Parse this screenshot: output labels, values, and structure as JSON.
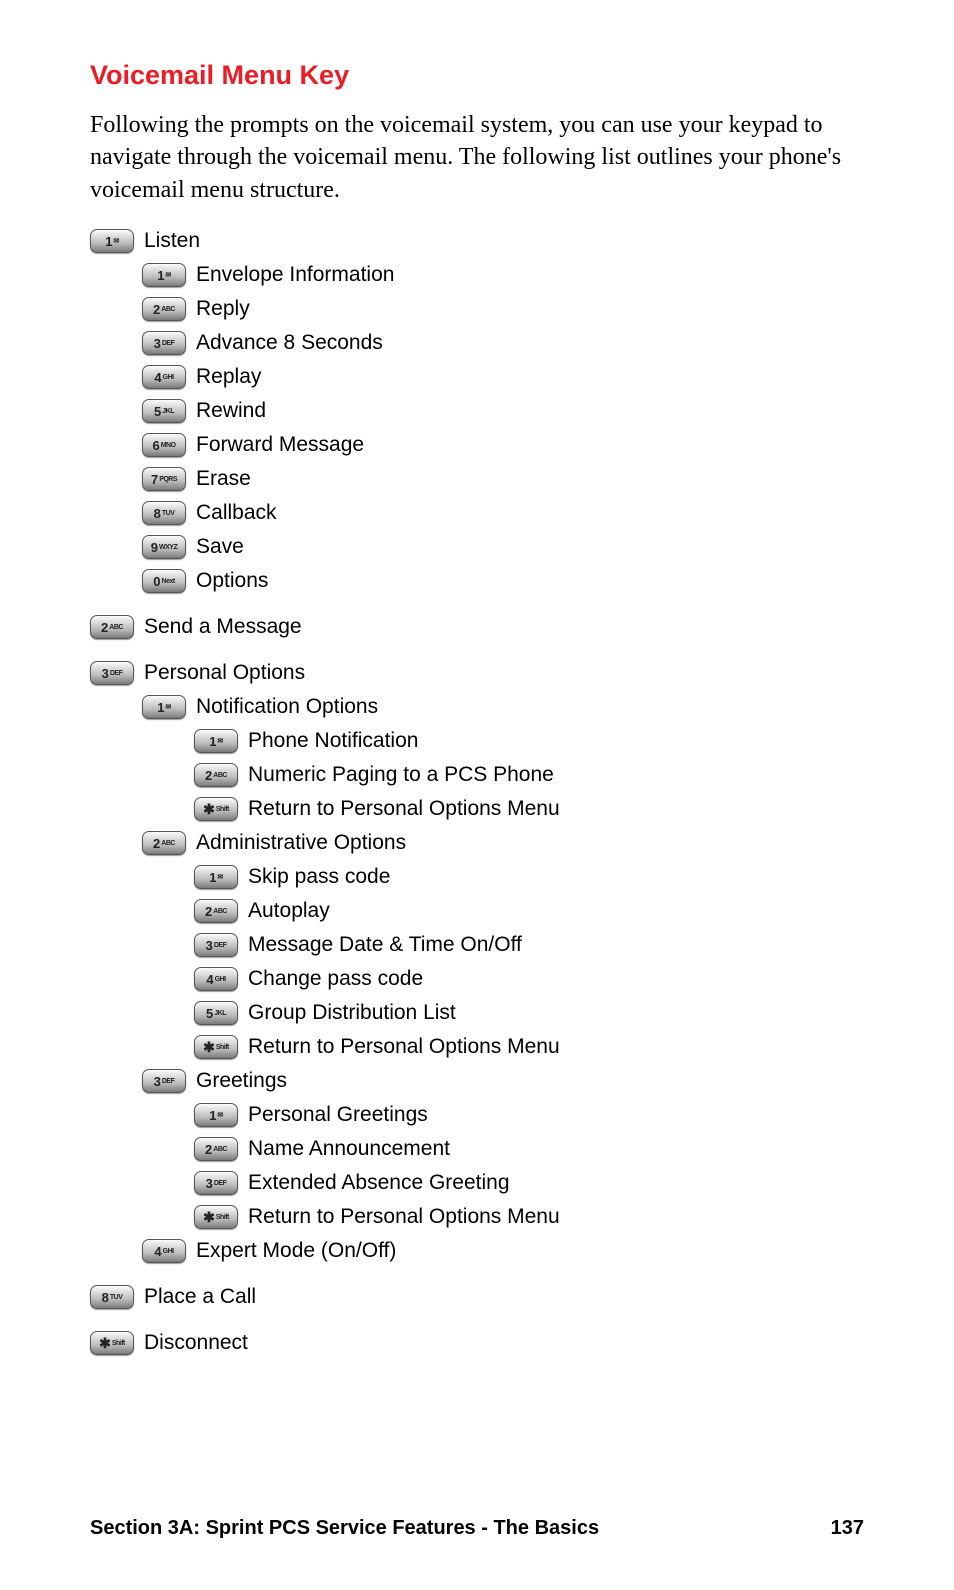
{
  "title": "Voicemail Menu Key",
  "intro": "Following the prompts on the voicemail system, you can use your keypad to navigate through the voicemail menu. The following list outlines your phone's voicemail menu structure.",
  "keys": {
    "1": {
      "big": "1",
      "sm": "✉"
    },
    "2": {
      "big": "2",
      "sm": "ABC"
    },
    "3": {
      "big": "3",
      "sm": "DEF"
    },
    "4": {
      "big": "4",
      "sm": "GHI"
    },
    "5": {
      "big": "5",
      "sm": "JKL"
    },
    "6": {
      "big": "6",
      "sm": "MNO"
    },
    "7": {
      "big": "7",
      "sm": "PQRS"
    },
    "8": {
      "big": "8",
      "sm": "TUV"
    },
    "9": {
      "big": "9",
      "sm": "WXYZ"
    },
    "0": {
      "big": "0",
      "sm": "Next"
    },
    "star": {
      "big": "✱",
      "sm": "Shift"
    }
  },
  "menu": [
    {
      "key": "1",
      "indent": 0,
      "label": "Listen",
      "spaced": false
    },
    {
      "key": "1",
      "indent": 1,
      "label": "Envelope Information",
      "spaced": false
    },
    {
      "key": "2",
      "indent": 1,
      "label": "Reply",
      "spaced": false
    },
    {
      "key": "3",
      "indent": 1,
      "label": "Advance 8 Seconds",
      "spaced": false
    },
    {
      "key": "4",
      "indent": 1,
      "label": "Replay",
      "spaced": false
    },
    {
      "key": "5",
      "indent": 1,
      "label": "Rewind",
      "spaced": false
    },
    {
      "key": "6",
      "indent": 1,
      "label": "Forward Message",
      "spaced": false
    },
    {
      "key": "7",
      "indent": 1,
      "label": "Erase",
      "spaced": false
    },
    {
      "key": "8",
      "indent": 1,
      "label": "Callback",
      "spaced": false
    },
    {
      "key": "9",
      "indent": 1,
      "label": "Save",
      "spaced": false
    },
    {
      "key": "0",
      "indent": 1,
      "label": "Options",
      "spaced": false
    },
    {
      "key": "2",
      "indent": 0,
      "label": "Send a Message",
      "spaced": true
    },
    {
      "key": "3",
      "indent": 0,
      "label": "Personal Options",
      "spaced": true
    },
    {
      "key": "1",
      "indent": 1,
      "label": "Notification Options",
      "spaced": false
    },
    {
      "key": "1",
      "indent": 2,
      "label": "Phone Notification",
      "spaced": false
    },
    {
      "key": "2",
      "indent": 2,
      "label": "Numeric Paging to a PCS Phone",
      "spaced": false
    },
    {
      "key": "star",
      "indent": 2,
      "label": "Return to Personal Options Menu",
      "spaced": false
    },
    {
      "key": "2",
      "indent": 1,
      "label": "Administrative Options",
      "spaced": false
    },
    {
      "key": "1",
      "indent": 2,
      "label": "Skip pass code",
      "spaced": false
    },
    {
      "key": "2",
      "indent": 2,
      "label": "Autoplay",
      "spaced": false
    },
    {
      "key": "3",
      "indent": 2,
      "label": "Message Date & Time On/Off",
      "spaced": false
    },
    {
      "key": "4",
      "indent": 2,
      "label": "Change pass code",
      "spaced": false
    },
    {
      "key": "5",
      "indent": 2,
      "label": "Group Distribution List",
      "spaced": false
    },
    {
      "key": "star",
      "indent": 2,
      "label": "Return to Personal Options Menu",
      "spaced": false
    },
    {
      "key": "3",
      "indent": 1,
      "label": "Greetings",
      "spaced": false
    },
    {
      "key": "1",
      "indent": 2,
      "label": "Personal Greetings",
      "spaced": false
    },
    {
      "key": "2",
      "indent": 2,
      "label": "Name Announcement",
      "spaced": false
    },
    {
      "key": "3",
      "indent": 2,
      "label": "Extended Absence Greeting",
      "spaced": false
    },
    {
      "key": "star",
      "indent": 2,
      "label": "Return to Personal Options Menu",
      "spaced": false
    },
    {
      "key": "4",
      "indent": 1,
      "label": "Expert Mode (On/Off)",
      "spaced": false
    },
    {
      "key": "8",
      "indent": 0,
      "label": "Place a Call",
      "spaced": true
    },
    {
      "key": "star",
      "indent": 0,
      "label": "Disconnect",
      "spaced": true
    }
  ],
  "footer": {
    "section": "Section 3A: Sprint PCS Service Features - The Basics",
    "page": "137"
  },
  "colors": {
    "title": "#ed1c24",
    "text": "#000000",
    "background": "#ffffff"
  }
}
